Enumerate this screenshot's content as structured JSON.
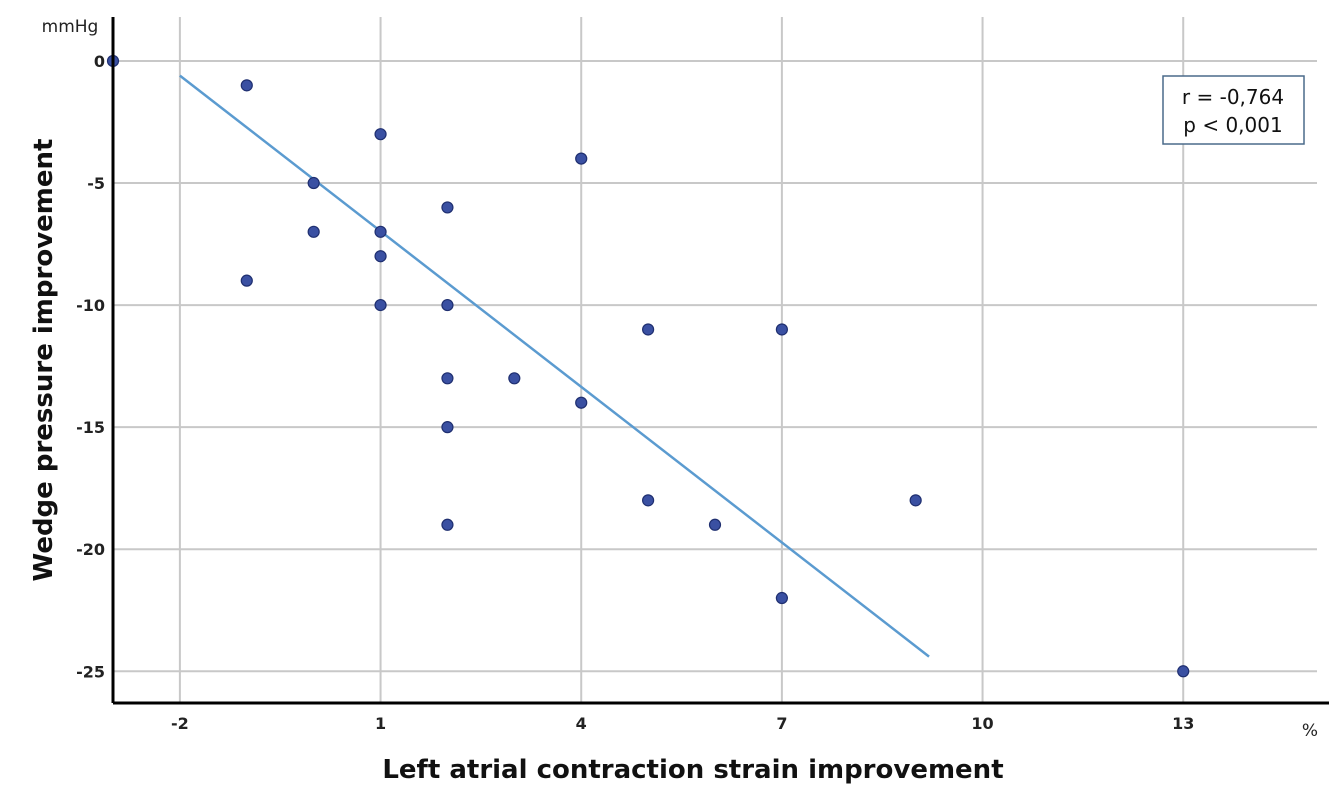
{
  "chart_data": {
    "type": "scatter",
    "xlabel": "Left atrial contraction strain improvement",
    "ylabel": "Wedge pressure improvement",
    "x_unit": "%",
    "y_unit": "mmHg",
    "xlim": [
      -3,
      15
    ],
    "ylim": [
      -26.3,
      1.8
    ],
    "x_ticks": [
      -2,
      1,
      4,
      7,
      10,
      13
    ],
    "y_ticks": [
      0,
      -5,
      -10,
      -15,
      -20,
      -25
    ],
    "grid": true,
    "points": [
      {
        "x": -3,
        "y": 0
      },
      {
        "x": -1,
        "y": -1
      },
      {
        "x": -1,
        "y": -9
      },
      {
        "x": 0,
        "y": -5
      },
      {
        "x": 0,
        "y": -7
      },
      {
        "x": 1,
        "y": -3
      },
      {
        "x": 1,
        "y": -7
      },
      {
        "x": 1,
        "y": -8
      },
      {
        "x": 1,
        "y": -10
      },
      {
        "x": 2,
        "y": -6
      },
      {
        "x": 2,
        "y": -10
      },
      {
        "x": 2,
        "y": -13
      },
      {
        "x": 2,
        "y": -15
      },
      {
        "x": 2,
        "y": -19
      },
      {
        "x": 3,
        "y": -13
      },
      {
        "x": 4,
        "y": -4
      },
      {
        "x": 4,
        "y": -14
      },
      {
        "x": 5,
        "y": -11
      },
      {
        "x": 5,
        "y": -18
      },
      {
        "x": 6,
        "y": -19
      },
      {
        "x": 7,
        "y": -11
      },
      {
        "x": 7,
        "y": -22
      },
      {
        "x": 9,
        "y": -18
      },
      {
        "x": 13,
        "y": -25
      }
    ],
    "fit_line": {
      "x_start": -2,
      "y_start": -0.6,
      "x_end": 9.2,
      "y_end": -24.4
    },
    "annotation": {
      "line1": "r = -0,764",
      "line2": "p < 0,001"
    },
    "colors": {
      "points": "#3A50A2",
      "point_edge": "#1F2F70",
      "fit_line": "#5B9BD0",
      "grid": "#C8C8C8",
      "axis": "#000000",
      "annotation_border": "#4A6A8A"
    }
  }
}
